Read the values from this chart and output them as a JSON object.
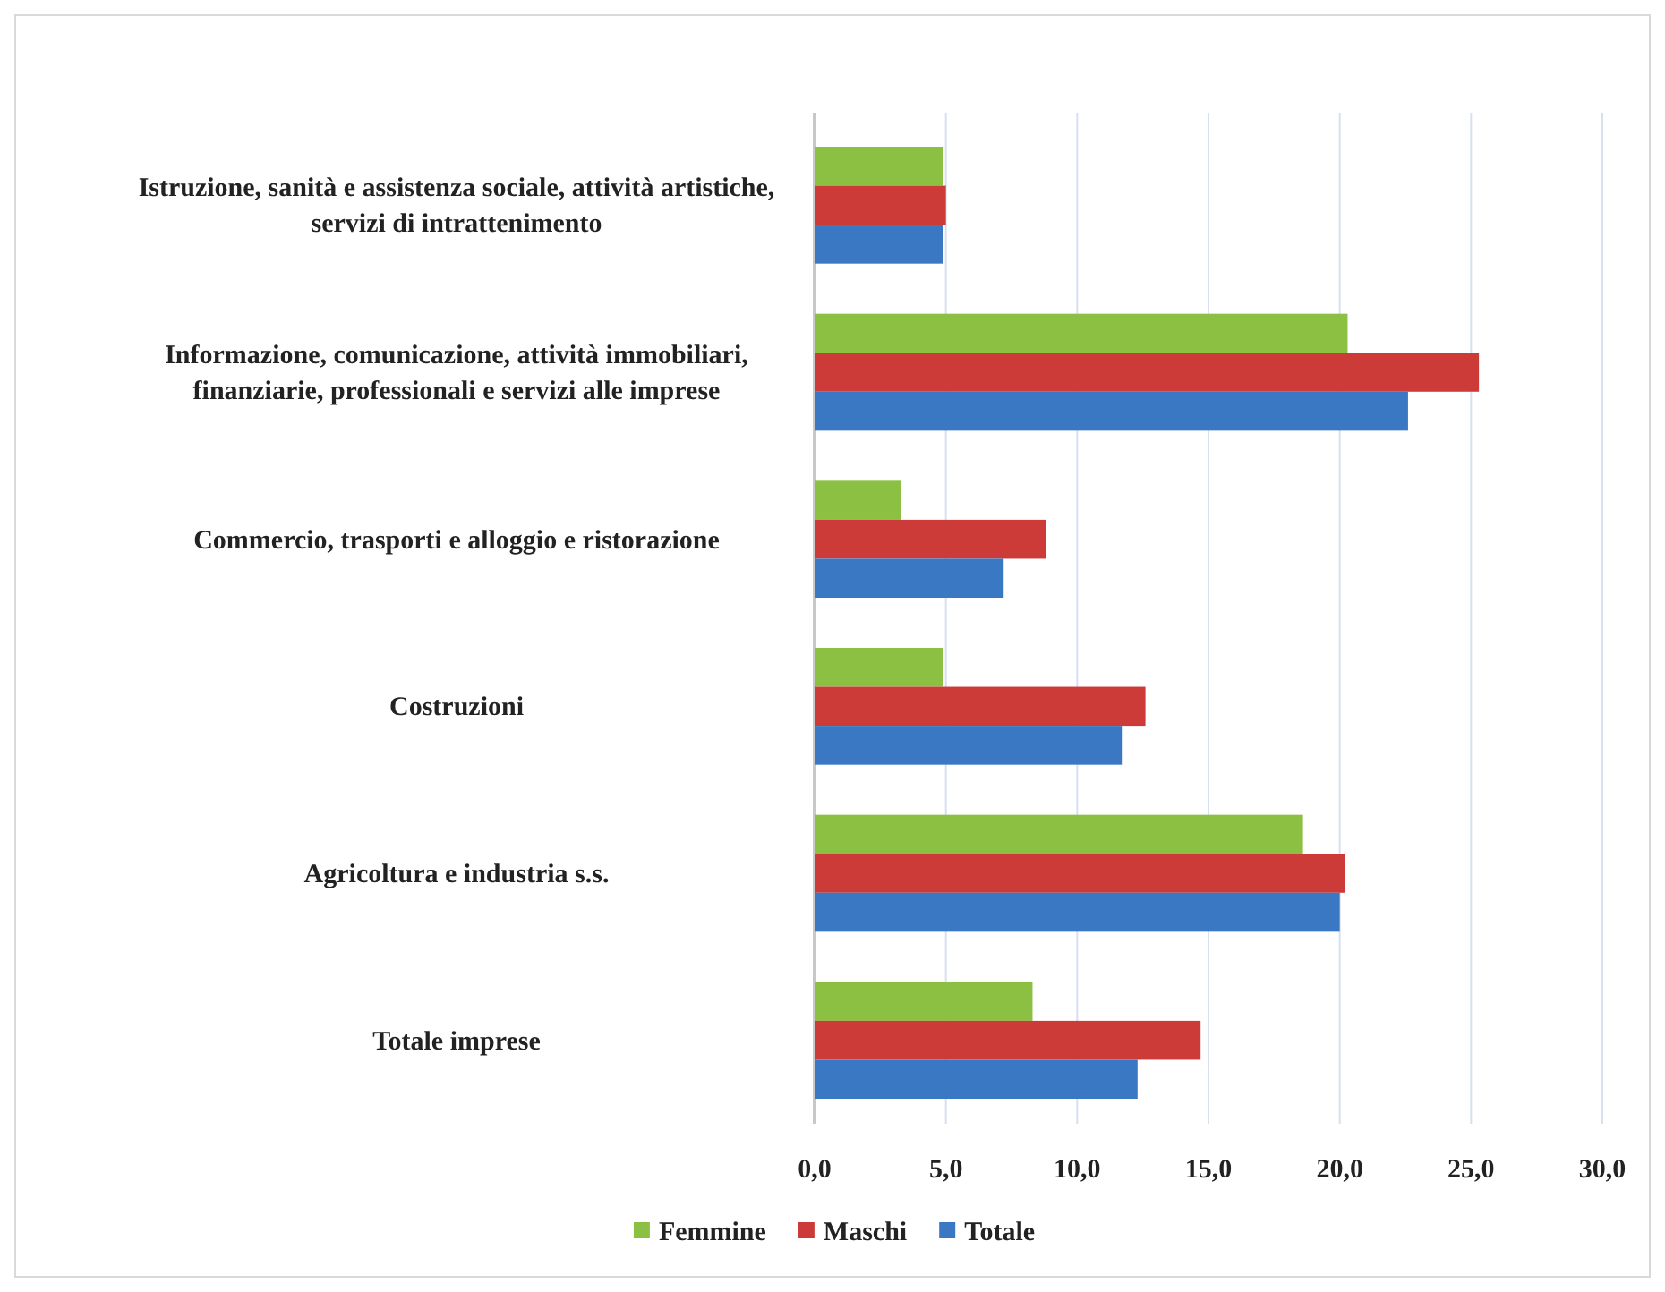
{
  "chart_data": {
    "type": "bar",
    "orientation": "horizontal",
    "categories": [
      "Istruzione, sanità e assistenza sociale, attività artistiche, servizi di intrattenimento",
      "Informazione, comunicazione, attività immobiliari, finanziarie, professionali e servizi alle imprese",
      "Commercio, trasporti e alloggio e ristorazione",
      "Costruzioni",
      "Agricoltura e industria s.s.",
      "Totale imprese"
    ],
    "series": [
      {
        "name": "Femmine",
        "color": "#8cc043",
        "values": [
          4.9,
          20.3,
          3.3,
          4.9,
          18.6,
          8.3
        ]
      },
      {
        "name": "Maschi",
        "color": "#cc3b37",
        "values": [
          5.0,
          25.3,
          8.8,
          12.6,
          20.2,
          14.7
        ]
      },
      {
        "name": "Totale",
        "color": "#3a78c4",
        "values": [
          4.9,
          22.6,
          7.2,
          11.7,
          20.0,
          12.3
        ]
      }
    ],
    "xlim": [
      0,
      30
    ],
    "xticks": [
      {
        "value": 0,
        "label": "0,0"
      },
      {
        "value": 5,
        "label": "5,0"
      },
      {
        "value": 10,
        "label": "10,0"
      },
      {
        "value": 15,
        "label": "15,0"
      },
      {
        "value": 20,
        "label": "20,0"
      },
      {
        "value": 25,
        "label": "25,0"
      },
      {
        "value": 30,
        "label": "30,0"
      }
    ],
    "grid": "x",
    "legend": "bottom"
  }
}
